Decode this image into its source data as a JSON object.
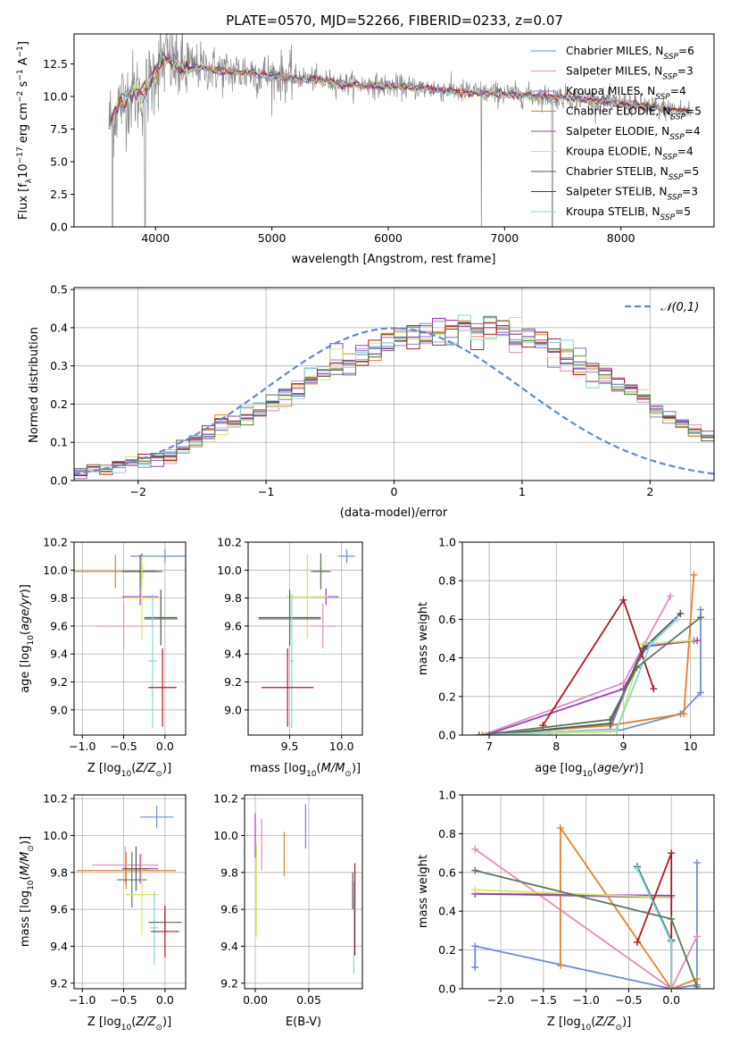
{
  "colors": {
    "chabrier_miles": "#6a8fdc",
    "salpeter_miles": "#e58ac0",
    "kroupa_miles": "#8b6fc9",
    "chabrier_elodie": "#e5802a",
    "salpeter_elodie": "#9a3fbf",
    "kroupa_elodie": "#d8e85a",
    "chabrier_stelib": "#555555",
    "salpeter_stelib": "#b0171f",
    "kroupa_stelib": "#7fd9e2",
    "spectrum": "#888888",
    "green": "#5a7a5a",
    "gauss": "#5b8bd6"
  },
  "chart_data": [
    {
      "id": "spectrum",
      "type": "line",
      "title": "PLATE=0570, MJD=52266, FIBERID=0233, z=0.07",
      "xlabel": "wavelength [Angstrom, rest frame]",
      "ylabel": "Flux [f_λ 10^-17 erg cm^-2 s^-1 A^-1]",
      "xlim": [
        3300,
        8800
      ],
      "ylim": [
        0,
        14.8
      ],
      "xticks": [
        4000,
        5000,
        6000,
        7000,
        8000
      ],
      "yticks": [
        0.0,
        2.5,
        5.0,
        7.5,
        10.0,
        12.5
      ],
      "legend_position": "upper-right",
      "series": [
        {
          "name": "Chabrier MILES, N_SSP=6",
          "key": "chabrier_miles"
        },
        {
          "name": "Salpeter MILES, N_SSP=3",
          "key": "salpeter_miles"
        },
        {
          "name": "Kroupa MILES, N_SSP=4",
          "key": "kroupa_miles"
        },
        {
          "name": "Chabrier ELODIE, N_SSP=5",
          "key": "chabrier_elodie"
        },
        {
          "name": "Salpeter ELODIE, N_SSP=4",
          "key": "salpeter_elodie"
        },
        {
          "name": "Kroupa ELODIE, N_SSP=4",
          "key": "kroupa_elodie"
        },
        {
          "name": "Chabrier STELIB, N_SSP=5",
          "key": "chabrier_stelib"
        },
        {
          "name": "Salpeter STELIB, N_SSP=3",
          "key": "salpeter_stelib"
        },
        {
          "name": "Kroupa STELIB, N_SSP=5",
          "key": "kroupa_stelib"
        }
      ],
      "continuum": [
        [
          3600,
          8.0
        ],
        [
          3700,
          9.6
        ],
        [
          3800,
          10.3
        ],
        [
          3900,
          10.1
        ],
        [
          4000,
          12.0
        ],
        [
          4100,
          13.0
        ],
        [
          4200,
          12.2
        ],
        [
          4400,
          12.3
        ],
        [
          4600,
          11.9
        ],
        [
          4800,
          11.9
        ],
        [
          5000,
          11.6
        ],
        [
          5200,
          11.5
        ],
        [
          5400,
          11.3
        ],
        [
          5600,
          11.0
        ],
        [
          5800,
          10.9
        ],
        [
          6000,
          10.8
        ],
        [
          6200,
          10.7
        ],
        [
          6400,
          10.6
        ],
        [
          6600,
          10.4
        ],
        [
          6800,
          10.3
        ],
        [
          7000,
          10.2
        ],
        [
          7200,
          10.1
        ],
        [
          7400,
          10.0
        ],
        [
          7600,
          9.9
        ],
        [
          7800,
          9.7
        ],
        [
          8000,
          9.5
        ],
        [
          8200,
          9.3
        ],
        [
          8400,
          9.0
        ],
        [
          8600,
          8.9
        ]
      ],
      "dropouts": [
        3630,
        3910,
        6800,
        7410
      ]
    },
    {
      "id": "residuals",
      "type": "histogram",
      "xlabel": "(data-model)/error",
      "ylabel": "Normed distribution",
      "xlim": [
        -2.5,
        2.5
      ],
      "ylim": [
        0,
        0.505
      ],
      "xticks": [
        -2,
        -1,
        0,
        1,
        2
      ],
      "yticks": [
        0.0,
        0.1,
        0.2,
        0.3,
        0.4,
        0.5
      ],
      "gaussian_label": "𝒩(0,1)",
      "bin_width": 0.1,
      "reference_hist": [
        0.02,
        0.03,
        0.03,
        0.04,
        0.05,
        0.05,
        0.06,
        0.07,
        0.08,
        0.1,
        0.12,
        0.14,
        0.15,
        0.17,
        0.18,
        0.2,
        0.22,
        0.24,
        0.26,
        0.28,
        0.3,
        0.31,
        0.33,
        0.34,
        0.36,
        0.37,
        0.38,
        0.39,
        0.39,
        0.4,
        0.4,
        0.4,
        0.4,
        0.39,
        0.38,
        0.37,
        0.36,
        0.34,
        0.33,
        0.31,
        0.29,
        0.27,
        0.25,
        0.23,
        0.21,
        0.19,
        0.17,
        0.15,
        0.13,
        0.11,
        0.1,
        0.08,
        0.07,
        0.06,
        0.05,
        0.05,
        0.04,
        0.03,
        0.03,
        0.02
      ]
    },
    {
      "id": "age_vs_z",
      "type": "errorbar",
      "xlabel": "Z [log10(Z/Z⊙)]",
      "ylabel": "age  [log10(age/yr)]",
      "xlim": [
        -1.1,
        0.25
      ],
      "ylim": [
        8.82,
        10.2
      ],
      "xticks": [
        -1.0,
        -0.5,
        0.0
      ],
      "yticks": [
        9.0,
        9.2,
        9.4,
        9.6,
        9.8,
        10.0,
        10.2
      ],
      "points": [
        {
          "key": "chabrier_miles",
          "x": 0.0,
          "y": 10.1,
          "xerr": 0.42,
          "yerr": 0.05
        },
        {
          "key": "chabrier_elodie",
          "x": -0.6,
          "y": 9.99,
          "xerr": 0.5,
          "yerr": 0.12
        },
        {
          "key": "kroupa_elodie",
          "x": -0.27,
          "y": 9.99,
          "xerr": 0.2,
          "yerr": 0.05
        },
        {
          "key": "green",
          "x": -0.28,
          "y": 9.99,
          "xerr": 0.25,
          "yerr": 0.13
        },
        {
          "key": "chabrier_stelib",
          "x": -0.3,
          "y": 9.99,
          "xerr": 0.2,
          "yerr": 0.12
        },
        {
          "key": "salpeter_elodie",
          "x": -0.3,
          "y": 9.81,
          "xerr": 0.22,
          "yerr": 0.06
        },
        {
          "key": "kroupa_elodie",
          "x": -0.28,
          "y": 9.8,
          "xerr": 0.2,
          "yerr": 0.3
        },
        {
          "key": "salpeter_miles",
          "x": -0.5,
          "y": 9.6,
          "xerr": 0.35,
          "yerr": 0.16
        },
        {
          "key": "chabrier_stelib",
          "x": -0.05,
          "y": 9.66,
          "xerr": 0.2,
          "yerr": 0.2
        },
        {
          "key": "green",
          "x": -0.05,
          "y": 9.65,
          "xerr": 0.2,
          "yerr": 0.12
        },
        {
          "key": "kroupa_stelib",
          "x": -0.15,
          "y": 9.35,
          "xerr": 0.05,
          "yerr": 0.48
        },
        {
          "key": "salpeter_stelib",
          "x": -0.03,
          "y": 9.16,
          "xerr": 0.17,
          "yerr": 0.28
        }
      ]
    },
    {
      "id": "age_vs_mass",
      "type": "errorbar",
      "xlabel": "mass [log10(M/M⊙)]",
      "ylabel": "",
      "xlim": [
        9.1,
        10.2
      ],
      "ylim": [
        8.82,
        10.2
      ],
      "xticks": [
        9.5,
        10.0
      ],
      "yticks": [
        9.0,
        9.2,
        9.4,
        9.6,
        9.8,
        10.0,
        10.2
      ],
      "points": [
        {
          "key": "chabrier_miles",
          "x": 10.05,
          "y": 10.1,
          "xerr": 0.08,
          "yerr": 0.05
        },
        {
          "key": "chabrier_elodie",
          "x": 9.8,
          "y": 9.99,
          "xerr": 0.1,
          "yerr": 0.12
        },
        {
          "key": "green",
          "x": 9.8,
          "y": 9.99,
          "xerr": 0.08,
          "yerr": 0.13
        },
        {
          "key": "salpeter_elodie",
          "x": 9.85,
          "y": 9.81,
          "xerr": 0.12,
          "yerr": 0.06
        },
        {
          "key": "kroupa_elodie",
          "x": 9.67,
          "y": 9.81,
          "xerr": 0.2,
          "yerr": 0.3
        },
        {
          "key": "salpeter_miles",
          "x": 9.82,
          "y": 9.6,
          "xerr": 0.12,
          "yerr": 0.16
        },
        {
          "key": "chabrier_stelib",
          "x": 9.5,
          "y": 9.66,
          "xerr": 0.3,
          "yerr": 0.2
        },
        {
          "key": "green",
          "x": 9.5,
          "y": 9.65,
          "xerr": 0.3,
          "yerr": 0.12
        },
        {
          "key": "kroupa_stelib",
          "x": 9.52,
          "y": 9.35,
          "xerr": 0.02,
          "yerr": 0.48
        },
        {
          "key": "salpeter_stelib",
          "x": 9.48,
          "y": 9.16,
          "xerr": 0.25,
          "yerr": 0.28
        }
      ]
    },
    {
      "id": "weight_vs_age",
      "type": "line",
      "xlabel": "age  [log10(age/yr)]",
      "ylabel": "mass weight",
      "xlim": [
        6.6,
        10.35
      ],
      "ylim": [
        0,
        1.0
      ],
      "xticks": [
        7,
        8,
        9,
        10
      ],
      "yticks": [
        0.0,
        0.2,
        0.4,
        0.6,
        0.8,
        1.0
      ],
      "series": [
        {
          "key": "chabrier_miles",
          "points": [
            [
              6.85,
              0.0
            ],
            [
              7.9,
              0.01
            ],
            [
              8.9,
              0.02
            ],
            [
              9.85,
              0.11
            ],
            [
              10.15,
              0.22
            ],
            [
              10.15,
              0.65
            ]
          ]
        },
        {
          "key": "salpeter_miles",
          "points": [
            [
              6.9,
              0.0
            ],
            [
              9.0,
              0.27
            ],
            [
              9.7,
              0.72
            ]
          ]
        },
        {
          "key": "kroupa_miles",
          "points": [
            [
              6.95,
              0.0
            ],
            [
              8.8,
              0.03
            ],
            [
              9.3,
              0.47
            ],
            [
              10.05,
              0.49
            ]
          ]
        },
        {
          "key": "chabrier_elodie",
          "points": [
            [
              6.9,
              0.0
            ],
            [
              8.8,
              0.05
            ],
            [
              9.9,
              0.11
            ],
            [
              10.05,
              0.83
            ]
          ]
        },
        {
          "key": "salpeter_elodie",
          "points": [
            [
              6.95,
              0.0
            ],
            [
              9.0,
              0.24
            ],
            [
              9.35,
              0.46
            ],
            [
              10.1,
              0.49
            ]
          ]
        },
        {
          "key": "kroupa_elodie",
          "points": [
            [
              6.95,
              0.0
            ],
            [
              8.9,
              0.02
            ],
            [
              9.3,
              0.47
            ],
            [
              10.0,
              0.49
            ]
          ]
        },
        {
          "key": "chabrier_stelib",
          "points": [
            [
              7.0,
              0.0
            ],
            [
              8.8,
              0.06
            ],
            [
              9.3,
              0.45
            ],
            [
              9.85,
              0.63
            ]
          ]
        },
        {
          "key": "salpeter_stelib",
          "points": [
            [
              7.8,
              0.05
            ],
            [
              9.0,
              0.7
            ],
            [
              9.45,
              0.24
            ]
          ]
        },
        {
          "key": "kroupa_stelib",
          "points": [
            [
              6.85,
              0.0
            ],
            [
              8.9,
              0.03
            ],
            [
              9.4,
              0.47
            ],
            [
              9.8,
              0.6
            ]
          ]
        },
        {
          "key": "green",
          "points": [
            [
              6.85,
              0.0
            ],
            [
              8.8,
              0.08
            ],
            [
              9.2,
              0.35
            ],
            [
              10.15,
              0.61
            ]
          ]
        }
      ]
    },
    {
      "id": "mass_vs_z",
      "type": "errorbar",
      "xlabel": "Z [log10(Z/Z⊙)]",
      "ylabel": "mass [log10(M/M⊙)]",
      "xlim": [
        -1.1,
        0.25
      ],
      "ylim": [
        9.17,
        10.22
      ],
      "xticks": [
        -1.0,
        -0.5,
        0.0
      ],
      "yticks": [
        9.2,
        9.4,
        9.6,
        9.8,
        10.0,
        10.2
      ],
      "points": [
        {
          "key": "chabrier_miles",
          "x": -0.1,
          "y": 10.1,
          "xerr": 0.2,
          "yerr": 0.06
        },
        {
          "key": "chabrier_elodie",
          "x": -0.47,
          "y": 9.81,
          "xerr": 0.6,
          "yerr": 0.1
        },
        {
          "key": "salpeter_miles",
          "x": -0.48,
          "y": 9.84,
          "xerr": 0.4,
          "yerr": 0.1
        },
        {
          "key": "green",
          "x": -0.4,
          "y": 9.76,
          "xerr": 0.18,
          "yerr": 0.15
        },
        {
          "key": "salpeter_elodie",
          "x": -0.3,
          "y": 9.82,
          "xerr": 0.22,
          "yerr": 0.08
        },
        {
          "key": "kroupa_elodie",
          "x": -0.28,
          "y": 9.68,
          "xerr": 0.2,
          "yerr": 0.22
        },
        {
          "key": "chabrier_stelib",
          "x": -0.35,
          "y": 9.82,
          "xerr": 0.15,
          "yerr": 0.12
        },
        {
          "key": "kroupa_stelib",
          "x": -0.13,
          "y": 9.5,
          "xerr": 0.05,
          "yerr": 0.2
        },
        {
          "key": "green",
          "x": 0.0,
          "y": 9.53,
          "xerr": 0.2,
          "yerr": 0.08
        },
        {
          "key": "salpeter_stelib",
          "x": 0.0,
          "y": 9.48,
          "xerr": 0.17,
          "yerr": 0.14
        }
      ]
    },
    {
      "id": "mass_vs_ebv",
      "type": "errorbar",
      "xlabel": "E(B-V)",
      "ylabel": "",
      "xlim": [
        -0.01,
        0.1
      ],
      "ylim": [
        9.17,
        10.22
      ],
      "xticks": [
        0.0,
        0.05
      ],
      "yticks": [
        9.2,
        9.4,
        9.6,
        9.8,
        10.0,
        10.2
      ],
      "points": [
        {
          "key": "salpeter_elodie",
          "x": 0.0,
          "y": 10.0,
          "xerr": 0.0,
          "yerr": 0.12
        },
        {
          "key": "salpeter_miles",
          "x": 0.006,
          "y": 9.95,
          "xerr": 0.0,
          "yerr": 0.14
        },
        {
          "key": "kroupa_elodie",
          "x": 0.001,
          "y": 9.7,
          "xerr": 0.0,
          "yerr": 0.25
        },
        {
          "key": "chabrier_elodie",
          "x": 0.027,
          "y": 9.9,
          "xerr": 0.0,
          "yerr": 0.12
        },
        {
          "key": "chabrier_miles",
          "x": 0.047,
          "y": 10.05,
          "xerr": 0.0,
          "yerr": 0.12
        },
        {
          "key": "salpeter_stelib",
          "x": 0.093,
          "y": 9.6,
          "xerr": 0.0,
          "yerr": 0.25
        },
        {
          "key": "kroupa_stelib",
          "x": 0.092,
          "y": 9.5,
          "xerr": 0.0,
          "yerr": 0.25
        },
        {
          "key": "chabrier_stelib",
          "x": 0.091,
          "y": 9.7,
          "xerr": 0.0,
          "yerr": 0.1
        }
      ]
    },
    {
      "id": "weight_vs_z",
      "type": "line",
      "xlabel": "Z [log10(Z/Z⊙)]",
      "ylabel": "mass weight",
      "xlim": [
        -2.45,
        0.5
      ],
      "ylim": [
        0,
        1.0
      ],
      "xticks": [
        -2.0,
        -1.5,
        -1.0,
        -0.5,
        0.0
      ],
      "yticks": [
        0.0,
        0.2,
        0.4,
        0.6,
        0.8,
        1.0
      ],
      "series": [
        {
          "key": "chabrier_miles",
          "points": [
            [
              -2.3,
              0.11
            ],
            [
              -2.3,
              0.22
            ],
            [
              0.0,
              0.0
            ],
            [
              0.3,
              0.02
            ],
            [
              0.3,
              0.65
            ]
          ]
        },
        {
          "key": "salpeter_miles",
          "points": [
            [
              -2.3,
              0.72
            ],
            [
              0.0,
              0.0
            ],
            [
              0.3,
              0.27
            ]
          ]
        },
        {
          "key": "kroupa_miles",
          "points": [
            [
              -2.3,
              0.49
            ],
            [
              0.0,
              0.47
            ]
          ]
        },
        {
          "key": "chabrier_elodie",
          "points": [
            [
              -1.3,
              0.12
            ],
            [
              -1.3,
              0.83
            ],
            [
              0.0,
              0.0
            ],
            [
              0.3,
              0.05
            ]
          ]
        },
        {
          "key": "salpeter_elodie",
          "points": [
            [
              -2.3,
              0.49
            ],
            [
              0.0,
              0.48
            ]
          ]
        },
        {
          "key": "kroupa_elodie",
          "points": [
            [
              -2.3,
              0.51
            ],
            [
              0.0,
              0.47
            ]
          ]
        },
        {
          "key": "chabrier_stelib",
          "points": [
            [
              -0.4,
              0.63
            ],
            [
              0.0,
              0.25
            ],
            [
              0.0,
              0.0
            ]
          ]
        },
        {
          "key": "salpeter_stelib",
          "points": [
            [
              -0.4,
              0.24
            ],
            [
              0.0,
              0.7
            ],
            [
              0.0,
              0.0
            ]
          ]
        },
        {
          "key": "kroupa_stelib",
          "points": [
            [
              -0.4,
              0.62
            ],
            [
              0.0,
              0.24
            ],
            [
              0.0,
              0.0
            ]
          ]
        },
        {
          "key": "green",
          "points": [
            [
              -2.3,
              0.61
            ],
            [
              0.0,
              0.36
            ],
            [
              0.3,
              0.01
            ]
          ]
        }
      ]
    }
  ]
}
